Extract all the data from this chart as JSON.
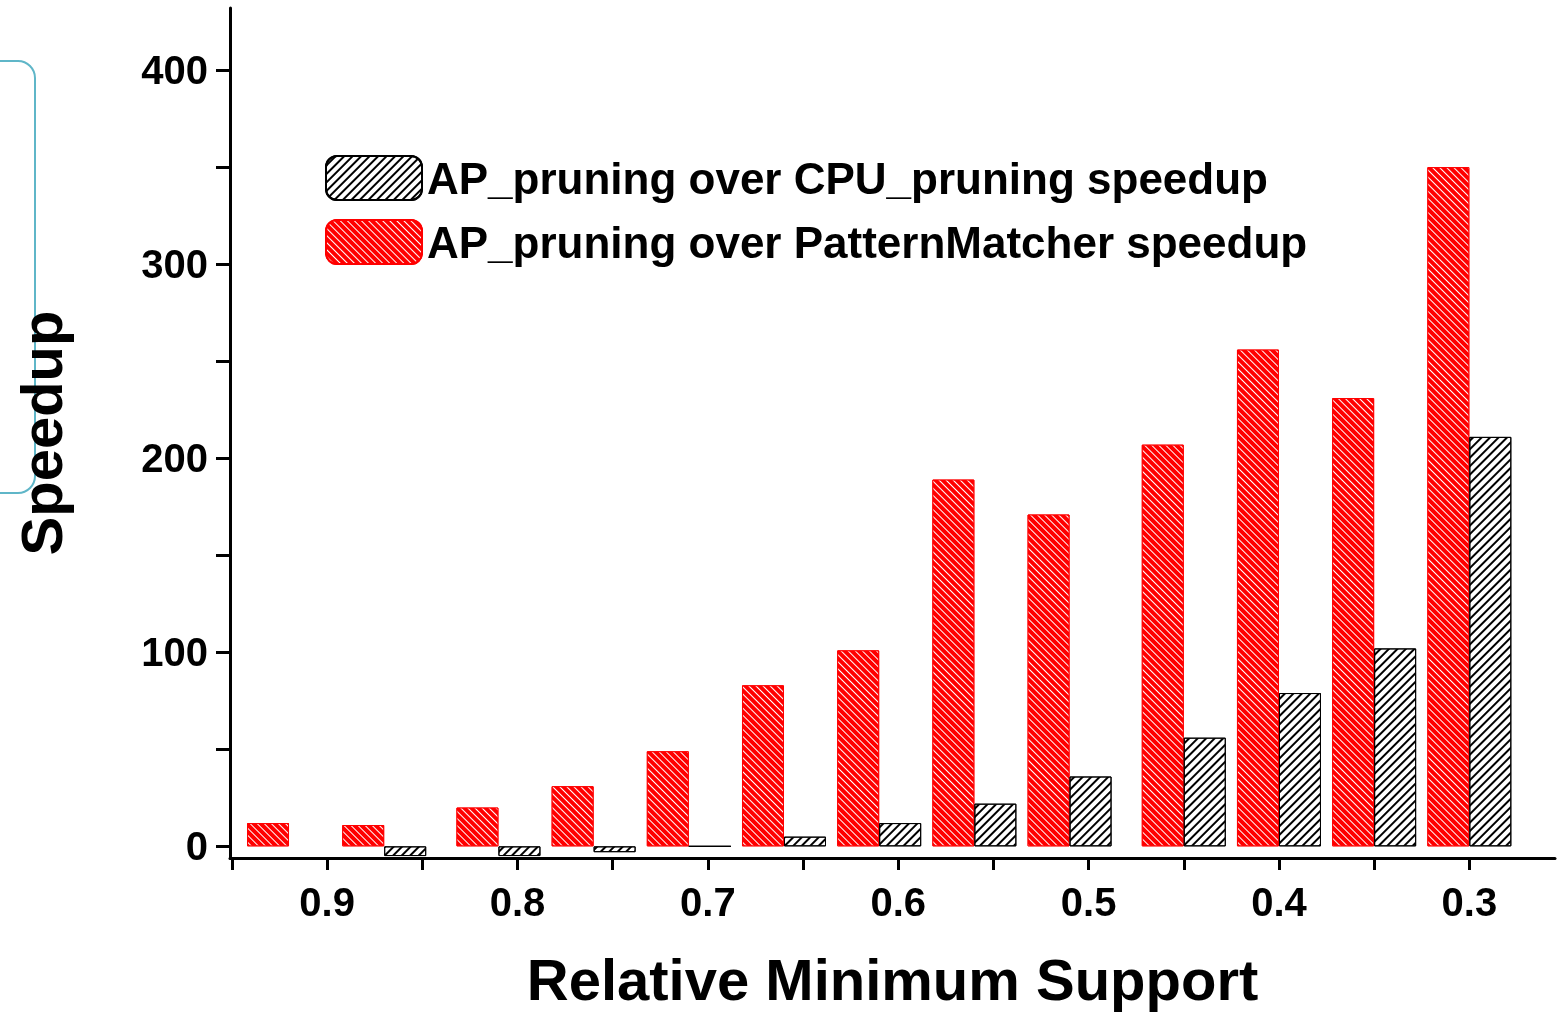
{
  "chart_data": {
    "type": "bar",
    "xlabel": "Relative Minimum Support",
    "ylabel": "Speedup",
    "x": [
      0.92,
      0.87,
      0.81,
      0.76,
      0.71,
      0.66,
      0.61,
      0.56,
      0.51,
      0.45,
      0.4,
      0.35,
      0.3
    ],
    "series": [
      {
        "name": "AP_pruning over CPU_pruning speedup",
        "color": "#000000",
        "values": [
          null,
          -5,
          -5,
          -3,
          0,
          5,
          12,
          22,
          36,
          56,
          79,
          102,
          211
        ]
      },
      {
        "name": "AP_pruning over PatternMatcher speedup",
        "color": "#ff0000",
        "values": [
          12,
          11,
          20,
          31,
          49,
          83,
          101,
          189,
          171,
          207,
          256,
          231,
          350
        ]
      }
    ],
    "xlim": [
      0.951,
      0.255
    ],
    "xticks": [
      {
        "value": 0.95,
        "label": null
      },
      0.9,
      {
        "value": 0.85,
        "label": null
      },
      0.8,
      {
        "value": 0.75,
        "label": null
      },
      0.7,
      {
        "value": 0.65,
        "label": null
      },
      0.6,
      {
        "value": 0.55,
        "label": null
      },
      0.5,
      {
        "value": 0.45,
        "label": null
      },
      0.4,
      {
        "value": 0.35,
        "label": null
      },
      0.3
    ],
    "ylim": [
      -6,
      432
    ],
    "yticks": [
      0,
      {
        "value": 50,
        "label": null
      },
      100,
      {
        "value": 150,
        "label": null
      },
      200,
      {
        "value": 250,
        "label": null
      },
      300,
      {
        "value": 350,
        "label": null
      },
      400
    ],
    "grid": false,
    "legend": "top left"
  }
}
